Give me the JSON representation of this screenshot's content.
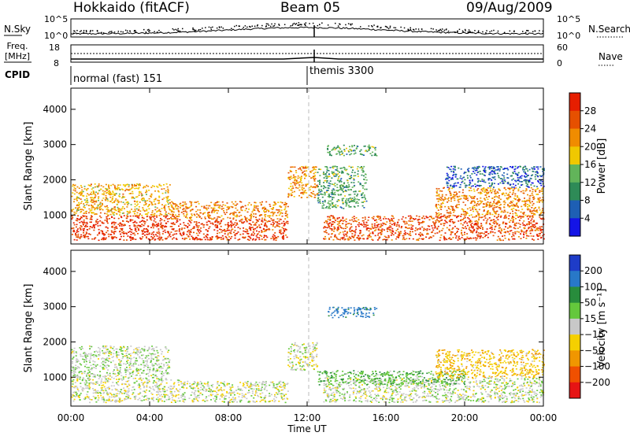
{
  "header": {
    "station": "Hokkaido (fitACF)",
    "beam": "Beam 05",
    "date": "09/Aug/2009"
  },
  "top_panels": {
    "nsky_label": "N.Sky",
    "nsearch_label": "N.Search",
    "noise_ticks": [
      "10^5",
      "10^0"
    ],
    "freq_label_1": "Freq.",
    "freq_label_2": "[MHz]",
    "freq_ticks": [
      "18",
      "8"
    ],
    "nave_label": "Nave",
    "nave_ticks": [
      "60",
      "0"
    ],
    "cpid_label": "CPID",
    "cpid_segments": [
      {
        "label": "normal (fast) 151",
        "start_hour": 0
      },
      {
        "label": "themis 3300",
        "start_hour": 12
      }
    ]
  },
  "chart_data": [
    {
      "type": "heatmap",
      "title": "",
      "xlabel": "",
      "ylabel": "Slant Range [km]",
      "xlim": [
        0,
        24
      ],
      "ylim": [
        180,
        4600
      ],
      "x_tick_labels": [
        "00:00",
        "04:00",
        "08:00",
        "12:00",
        "16:00",
        "20:00",
        "00:00"
      ],
      "y_ticks": [
        1000,
        2000,
        3000,
        4000
      ],
      "colorbar": {
        "label": "Power [dB]",
        "ticks": [
          4,
          8,
          12,
          16,
          20,
          24,
          28
        ],
        "colors": [
          "#1414e6",
          "#1e5fb4",
          "#2e8b57",
          "#62b45a",
          "#f0c800",
          "#f08c00",
          "#e65000",
          "#e61e00"
        ]
      },
      "scatter_regions": [
        {
          "hours": [
            0,
            5.5
          ],
          "km": [
            300,
            1000
          ],
          "power": 29
        },
        {
          "hours": [
            5.5,
            11
          ],
          "km": [
            300,
            900
          ],
          "power": 28
        },
        {
          "hours": [
            12.8,
            24
          ],
          "km": [
            300,
            1000
          ],
          "power": 27
        },
        {
          "hours": [
            0,
            5
          ],
          "km": [
            1000,
            1900
          ],
          "power": 20
        },
        {
          "hours": [
            5,
            11
          ],
          "km": [
            900,
            1400
          ],
          "power": 23
        },
        {
          "hours": [
            11,
            12.5
          ],
          "km": [
            1500,
            2400
          ],
          "power": 22
        },
        {
          "hours": [
            12.5,
            15
          ],
          "km": [
            1200,
            2400
          ],
          "power": 12
        },
        {
          "hours": [
            13,
            15.5
          ],
          "km": [
            2700,
            3000
          ],
          "power": 12
        },
        {
          "hours": [
            18.5,
            24
          ],
          "km": [
            1000,
            1800
          ],
          "power": 23
        },
        {
          "hours": [
            19,
            24
          ],
          "km": [
            1800,
            2400
          ],
          "power": 6
        }
      ]
    },
    {
      "type": "heatmap",
      "title": "",
      "xlabel": "Time UT",
      "ylabel": "Slant Range [km]",
      "xlim": [
        0,
        24
      ],
      "ylim": [
        180,
        4600
      ],
      "x_tick_labels": [
        "00:00",
        "04:00",
        "08:00",
        "12:00",
        "16:00",
        "20:00",
        "00:00"
      ],
      "y_ticks": [
        1000,
        2000,
        3000,
        4000
      ],
      "colorbar": {
        "label": "Velocity [m s⁻¹]",
        "ticks": [
          "200",
          "100",
          "50",
          "15",
          "−15",
          "−50",
          "−100",
          "−200"
        ],
        "colors": [
          "#1e3cc8",
          "#2878c8",
          "#288c3c",
          "#64c83c",
          "#c8c8c8",
          "#f5d000",
          "#f09600",
          "#f05000",
          "#e61414"
        ]
      },
      "scatter_regions": [
        {
          "hours": [
            0,
            5.5
          ],
          "km": [
            300,
            1000
          ],
          "velocity": 0
        },
        {
          "hours": [
            5.5,
            11
          ],
          "km": [
            300,
            900
          ],
          "velocity": 0
        },
        {
          "hours": [
            12.8,
            24
          ],
          "km": [
            300,
            1000
          ],
          "velocity": 5
        },
        {
          "hours": [
            0,
            5
          ],
          "km": [
            1000,
            1900
          ],
          "velocity": 10
        },
        {
          "hours": [
            11,
            12.5
          ],
          "km": [
            1200,
            2000
          ],
          "velocity": 0
        },
        {
          "hours": [
            13,
            15.5
          ],
          "km": [
            2700,
            3000
          ],
          "velocity": 120
        },
        {
          "hours": [
            12.5,
            20
          ],
          "km": [
            800,
            1200
          ],
          "velocity": 40
        },
        {
          "hours": [
            18.5,
            24
          ],
          "km": [
            1000,
            1800
          ],
          "velocity": -40
        }
      ]
    }
  ]
}
